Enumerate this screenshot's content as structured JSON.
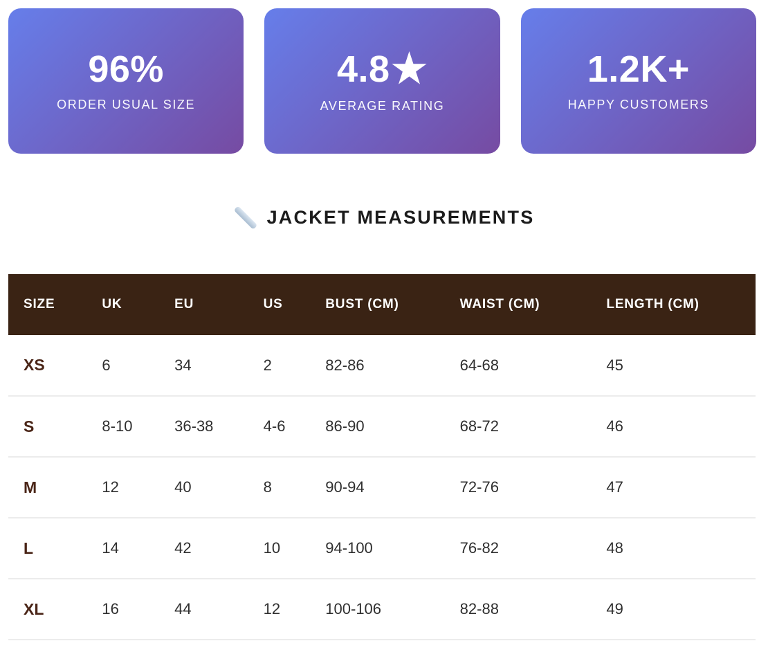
{
  "stats": [
    {
      "value": "96%",
      "label": "ORDER USUAL SIZE"
    },
    {
      "value": "4.8",
      "star": "★",
      "label": "AVERAGE RATING"
    },
    {
      "value": "1.2K+",
      "label": "HAPPY CUSTOMERS"
    }
  ],
  "section": {
    "icon": "straight-ruler",
    "title": "JACKET MEASUREMENTS"
  },
  "table": {
    "columns": [
      "SIZE",
      "UK",
      "EU",
      "US",
      "BUST (CM)",
      "WAIST (CM)",
      "LENGTH (CM)"
    ],
    "column_widths": [
      "10.5%",
      "9.7%",
      "11.9%",
      "8.3%",
      "18%",
      "19.6%",
      "22%"
    ],
    "rows": [
      [
        "XS",
        "6",
        "34",
        "2",
        "82-86",
        "64-68",
        "45"
      ],
      [
        "S",
        "8-10",
        "36-38",
        "4-6",
        "86-90",
        "68-72",
        "46"
      ],
      [
        "M",
        "12",
        "40",
        "8",
        "90-94",
        "72-76",
        "47"
      ],
      [
        "L",
        "14",
        "42",
        "10",
        "94-100",
        "76-82",
        "48"
      ],
      [
        "XL",
        "16",
        "44",
        "12",
        "100-106",
        "82-88",
        "49"
      ]
    ]
  },
  "colors": {
    "gradient_start": "#667eea",
    "gradient_end": "#764ba2",
    "table_header_bg": "#3a2314",
    "size_text": "#4a2517",
    "separator": "#ececec"
  }
}
